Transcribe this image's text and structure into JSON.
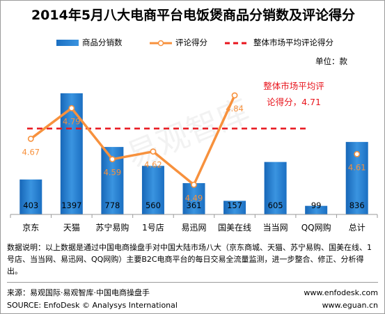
{
  "title": "2014年5月八大电商平台电饭煲商品分销数及评论得分",
  "legend": {
    "bars": "商品分销数",
    "line": "评论得分",
    "avg": "整体市场平均评论得分"
  },
  "unit": "单位：款",
  "avg_label_line1": "整体市场平均评",
  "avg_label_line2": "论得分，4.71",
  "watermark": "易观智库",
  "note": "数据说明：以上数据是通过中国电商操盘手对中国大陆市场八大（京东商城、天猫、苏宁易购、国美在线、1号店、当当网、易迅网、QQ网购）主要B2C电商平台的每日交易全流量监测，进一步整合、修正、分析得出。",
  "footer": {
    "source_cn": "来源：易观国际·易观智库·中国电商操盘手",
    "source_en": "SOURCE: EnfoDesk © Analysys International",
    "url1": "www.enfodesk.com",
    "url2": "www.eguan.cn"
  },
  "colors": {
    "bar": "#2a7fd4",
    "line": "#f7913d",
    "avg": "#e8141c",
    "text": "#000000"
  },
  "chart_data": {
    "type": "bar",
    "categories": [
      "京东",
      "天猫",
      "苏宁易购",
      "1号店",
      "易迅网",
      "国美在线",
      "当当网",
      "QQ网购",
      "总计"
    ],
    "series": [
      {
        "name": "商品分销数",
        "type": "bar",
        "values": [
          403,
          1397,
          778,
          560,
          361,
          157,
          605,
          99,
          836
        ]
      },
      {
        "name": "评论得分",
        "type": "line",
        "values": [
          4.67,
          4.79,
          4.59,
          4.62,
          4.49,
          4.84,
          null,
          null,
          4.61
        ]
      },
      {
        "name": "整体市场平均评论得分",
        "type": "reference_line",
        "value": 4.71
      }
    ],
    "annotation": "整体市场平均评论得分，4.71"
  }
}
